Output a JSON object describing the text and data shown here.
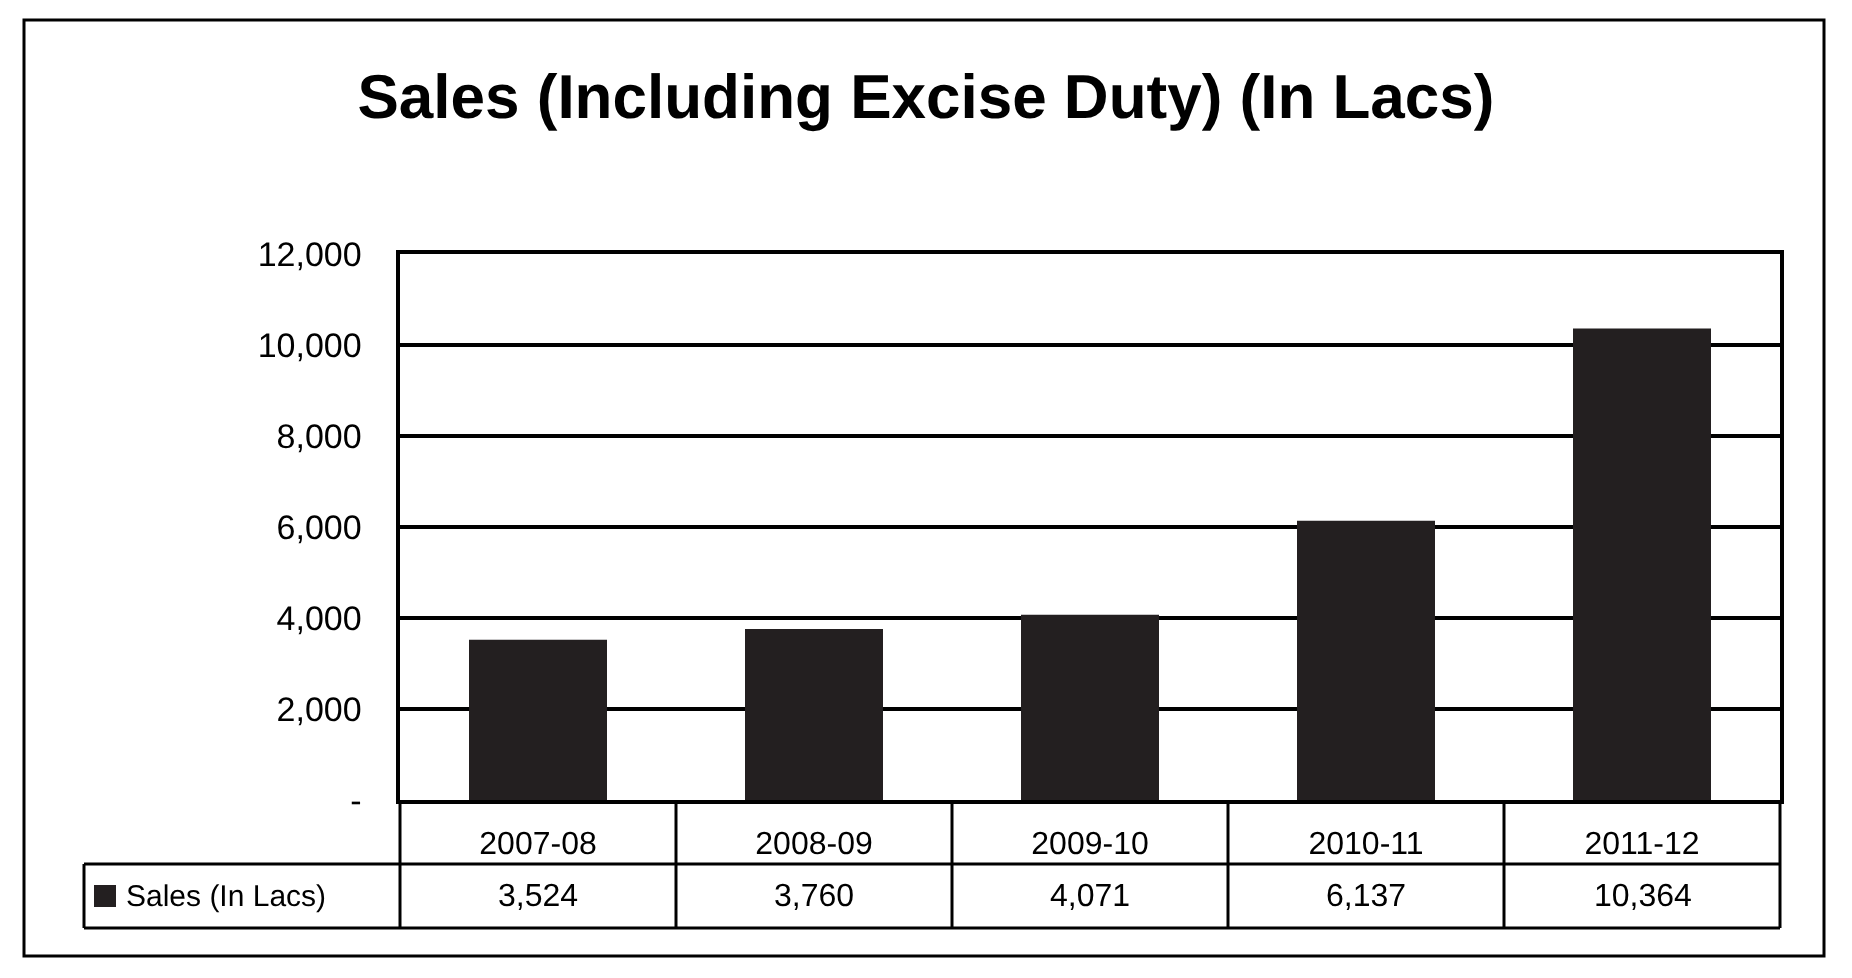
{
  "chart_data": {
    "type": "bar",
    "title": "Sales (Including Excise Duty) (In Lacs)",
    "categories": [
      "2007-08",
      "2008-09",
      "2009-10",
      "2010-11",
      "2011-12"
    ],
    "series": [
      {
        "name": "Sales (In Lacs)",
        "color": "#231f20",
        "values": [
          3524,
          3760,
          4071,
          6137,
          10364
        ],
        "value_labels": [
          "3,524",
          "3,760",
          "4,071",
          "6,137",
          "10,364"
        ]
      }
    ],
    "ylim": [
      0,
      12000
    ],
    "yticks": [
      {
        "value": 0,
        "label": "-"
      },
      {
        "value": 2000,
        "label": "2,000"
      },
      {
        "value": 4000,
        "label": "4,000"
      },
      {
        "value": 6000,
        "label": "6,000"
      },
      {
        "value": 8000,
        "label": "8,000"
      },
      {
        "value": 10000,
        "label": "10,000"
      },
      {
        "value": 12000,
        "label": "12,000"
      }
    ],
    "grid": "y",
    "legend": "bottom left"
  }
}
